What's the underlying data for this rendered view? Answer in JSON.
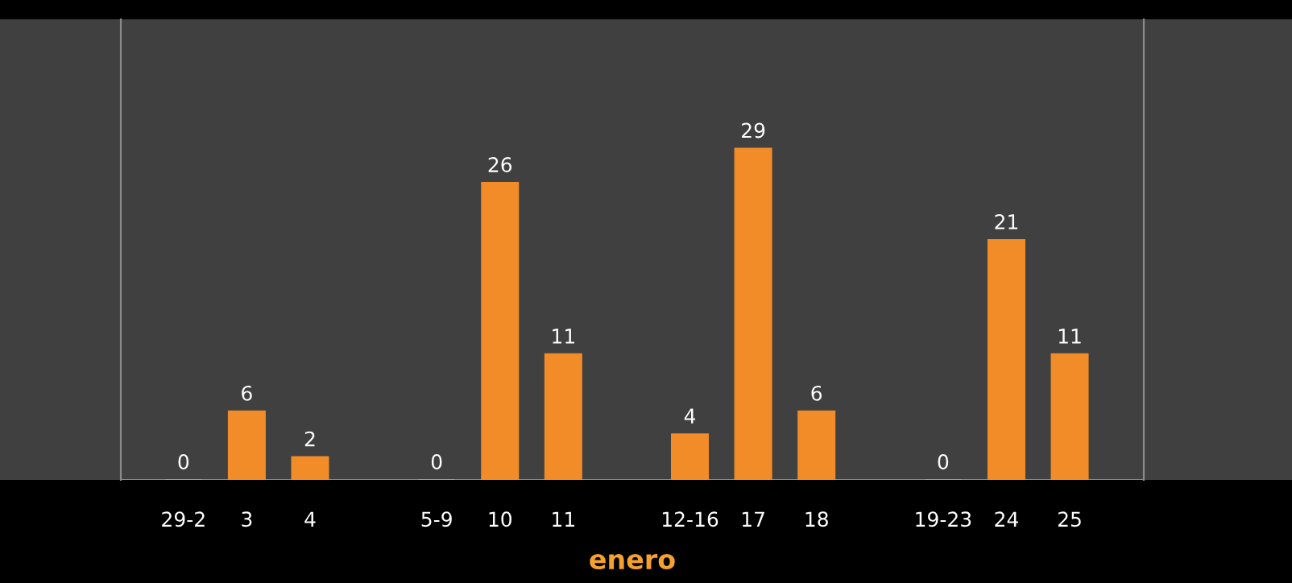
{
  "chart_data": {
    "type": "bar",
    "categories": [
      "29-2",
      "3",
      "4",
      null,
      "5-9",
      "10",
      "11",
      null,
      "12-16",
      "17",
      "18",
      null,
      "19-23",
      "24",
      "25"
    ],
    "values": [
      0,
      6,
      2,
      null,
      0,
      26,
      11,
      null,
      4,
      29,
      6,
      null,
      0,
      21,
      11
    ],
    "color": "#f28c28",
    "xlabel": "enero",
    "data_labels": true,
    "tick_labels": "x"
  }
}
